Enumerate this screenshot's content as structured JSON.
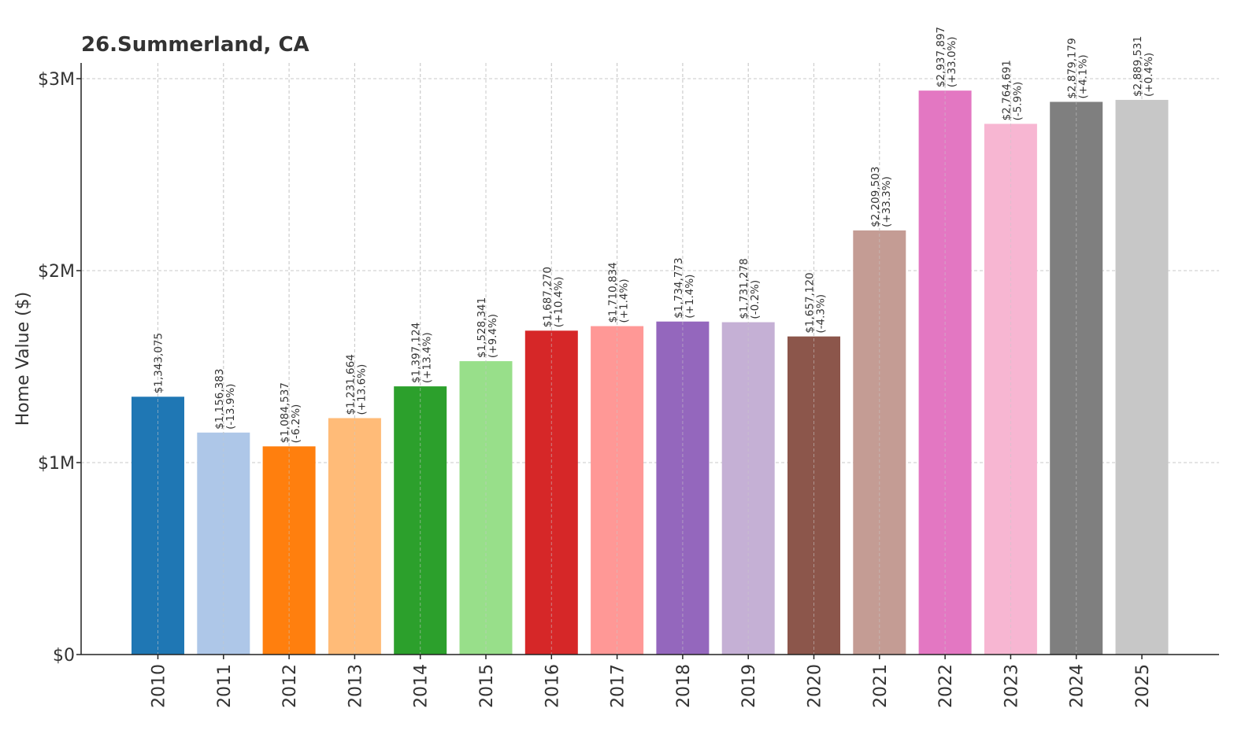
{
  "chart_data": {
    "type": "bar",
    "title": "26.Summerland, CA",
    "xlabel": "",
    "ylabel": "Home Value ($)",
    "ylim": [
      0,
      3100000
    ],
    "yticks": [
      {
        "value": 0,
        "label": "$0"
      },
      {
        "value": 1000000,
        "label": "$1M"
      },
      {
        "value": 2000000,
        "label": "$2M"
      },
      {
        "value": 3000000,
        "label": "$3M"
      }
    ],
    "grid": true,
    "categories": [
      "2010",
      "2011",
      "2012",
      "2013",
      "2014",
      "2015",
      "2016",
      "2017",
      "2018",
      "2019",
      "2020",
      "2021",
      "2022",
      "2023",
      "2024",
      "2025"
    ],
    "values": [
      1343075,
      1156383,
      1084537,
      1231664,
      1397124,
      1528341,
      1687270,
      1710834,
      1734773,
      1731278,
      1657120,
      2209503,
      2937897,
      2764691,
      2879179,
      2889531
    ],
    "value_labels": [
      "$1,343,075",
      "$1,156,383",
      "$1,084,537",
      "$1,231,664",
      "$1,397,124",
      "$1,528,341",
      "$1,687,270",
      "$1,710,834",
      "$1,734,773",
      "$1,731,278",
      "$1,657,120",
      "$2,209,503",
      "$2,937,897",
      "$2,764,691",
      "$2,879,179",
      "$2,889,531"
    ],
    "change_labels": [
      "",
      "(-13.9%)",
      "(-6.2%)",
      "(+13.6%)",
      "(+13.4%)",
      "(+9.4%)",
      "(+10.4%)",
      "(+1.4%)",
      "(+1.4%)",
      "(-0.2%)",
      "(-4.3%)",
      "(+33.3%)",
      "(+33.0%)",
      "(-5.9%)",
      "(+4.1%)",
      "(+0.4%)"
    ],
    "colors": [
      "#1f77b4",
      "#aec7e8",
      "#ff7f0e",
      "#ffbb78",
      "#2ca02c",
      "#98df8a",
      "#d62728",
      "#ff9896",
      "#9467bd",
      "#c5b0d5",
      "#8c564b",
      "#c49c94",
      "#e377c2",
      "#f7b6d2",
      "#7f7f7f",
      "#c7c7c7"
    ]
  }
}
